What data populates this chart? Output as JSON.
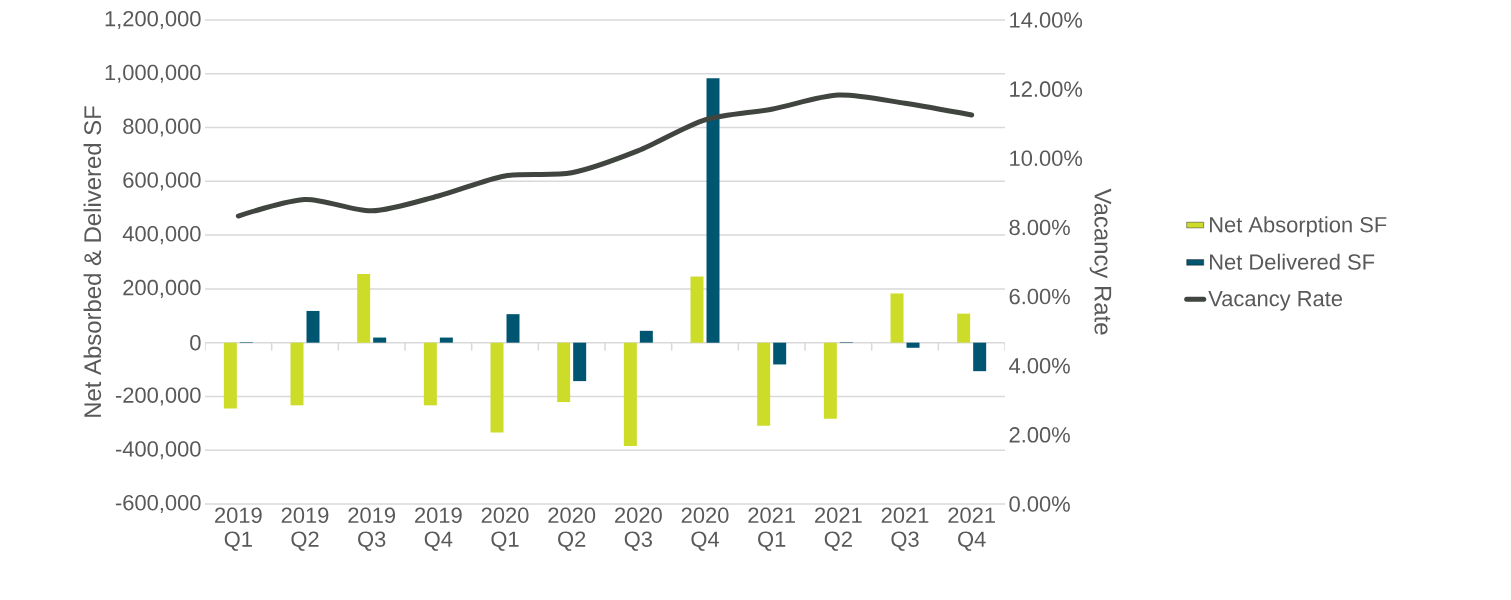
{
  "chart_data": {
    "type": "bar",
    "ylabel": "Net Absorbed & Delivered SF",
    "y2label": "Vacancy Rate",
    "categories": [
      "2019 Q1",
      "2019 Q2",
      "2019 Q3",
      "2019 Q4",
      "2020 Q1",
      "2020 Q2",
      "2020 Q3",
      "2020 Q4",
      "2021 Q1",
      "2021 Q2",
      "2021 Q3",
      "2021 Q4"
    ],
    "series": [
      {
        "name": "Net Absorption SF",
        "color": "#cddc29",
        "values": [
          -245000,
          -233000,
          255000,
          -233000,
          -334000,
          -221000,
          -384000,
          246000,
          -309000,
          -283000,
          183000,
          108000
        ]
      },
      {
        "name": "Net Delivered SF",
        "color": "#005670",
        "values": [
          2000,
          118000,
          19000,
          19000,
          106000,
          -143000,
          44000,
          983000,
          -81000,
          2000,
          -19000,
          -106000
        ]
      },
      {
        "name": "Vacancy Rate",
        "type": "line",
        "axis": "y2",
        "color": "#404540",
        "values": [
          8.33,
          8.81,
          8.48,
          8.91,
          9.49,
          9.58,
          10.22,
          11.11,
          11.42,
          11.83,
          11.59,
          11.25
        ]
      }
    ],
    "ylim": [
      -600000,
      1200000
    ],
    "yticks": [
      {
        "value": -600000,
        "label": "-600,000"
      },
      {
        "value": -400000,
        "label": "-400,000"
      },
      {
        "value": -200000,
        "label": "-200,000"
      },
      0,
      {
        "value": 200000,
        "label": "200,000"
      },
      {
        "value": 400000,
        "label": "400,000"
      },
      {
        "value": 600000,
        "label": "600,000"
      },
      {
        "value": 800000,
        "label": "800,000"
      },
      {
        "value": 1000000,
        "label": "1,000,000"
      },
      {
        "value": 1200000,
        "label": "1,200,000"
      }
    ],
    "y2lim": [
      0,
      14
    ],
    "y2ticks": [
      {
        "value": 0,
        "label": "0.00%"
      },
      {
        "value": 2,
        "label": "2.00%"
      },
      {
        "value": 4,
        "label": "4.00%"
      },
      {
        "value": 6,
        "label": "6.00%"
      },
      {
        "value": 8,
        "label": "8.00%"
      },
      {
        "value": 10,
        "label": "10.00%"
      },
      {
        "value": 12,
        "label": "12.00%"
      },
      {
        "value": 14,
        "label": "14.00%"
      }
    ],
    "grid": "y",
    "legend": "right"
  }
}
